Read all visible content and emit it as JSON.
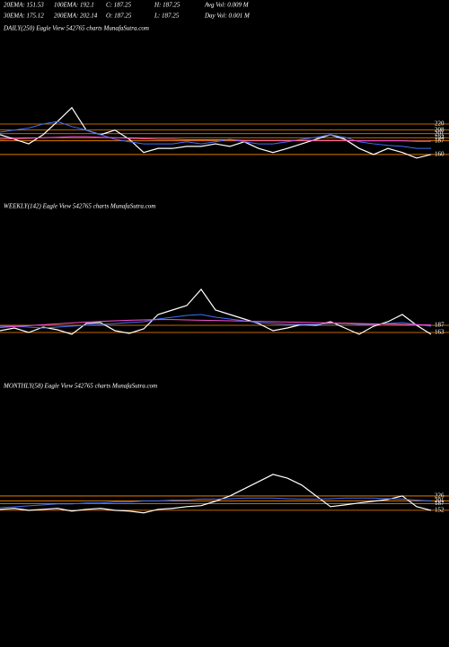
{
  "header": {
    "row1": [
      "20EMA: 151.53",
      "100EMA: 192.1",
      "C: 187.25",
      "H: 187.25",
      "Avg Vol: 0.009 M"
    ],
    "row2": [
      "30EMA: 175.12",
      "200EMA: 202.14",
      "O: 187.25",
      "L: 187.25",
      "Day Vol: 0.001 M"
    ]
  },
  "chart_data": [
    {
      "type": "line",
      "title": "DAILY(250) Eagle  View  542765 charts MunafaSutra.com",
      "ylim": [
        84,
        393
      ],
      "yticks": [
        220,
        208,
        201,
        193,
        187,
        160
      ],
      "grid": true,
      "grid_color": "#ff8c00",
      "series": [
        {
          "color": "#ffffff",
          "values": [
            199,
            190,
            181,
            199,
            225,
            252,
            208,
            199,
            208,
            190,
            164,
            172,
            172,
            176,
            176,
            181,
            176,
            185,
            172,
            164,
            172,
            181,
            190,
            199,
            190,
            172,
            160,
            172,
            164,
            153,
            160
          ]
        },
        {
          "color": "#3f6fff",
          "values": [
            204,
            208,
            212,
            220,
            225,
            215,
            208,
            199,
            190,
            185,
            181,
            181,
            181,
            185,
            181,
            185,
            190,
            185,
            181,
            181,
            185,
            190,
            194,
            199,
            194,
            185,
            181,
            178,
            176,
            172,
            172
          ]
        },
        {
          "color": "#ff4fd8",
          "values": [
            190,
            191,
            192,
            193,
            194,
            195,
            195,
            194,
            193,
            192,
            191,
            190,
            190,
            189,
            189,
            189,
            189,
            188,
            188,
            188,
            188,
            188,
            188,
            188,
            188,
            187,
            187,
            187,
            187,
            186,
            186
          ]
        }
      ]
    },
    {
      "type": "line",
      "title": "WEEKLY(142) Eagle  View  542765 charts MunafaSutra.com",
      "ylim": [
        28,
        553
      ],
      "yticks": [
        187,
        163
      ],
      "grid": true,
      "grid_color": "#ff8c00",
      "series": [
        {
          "color": "#ffffff",
          "values": [
            169,
            178,
            163,
            181,
            172,
            157,
            193,
            196,
            169,
            160,
            175,
            223,
            238,
            253,
            307,
            238,
            223,
            208,
            193,
            169,
            178,
            190,
            187,
            199,
            178,
            157,
            184,
            199,
            223,
            187,
            157
          ]
        },
        {
          "color": "#3f6fff",
          "values": [
            184,
            184,
            181,
            178,
            181,
            184,
            187,
            190,
            193,
            196,
            199,
            208,
            214,
            220,
            223,
            214,
            208,
            202,
            196,
            193,
            190,
            190,
            190,
            193,
            193,
            190,
            190,
            193,
            196,
            190,
            184
          ]
        },
        {
          "color": "#ff4fd8",
          "values": [
            180,
            183,
            186,
            189,
            192,
            195,
            198,
            200,
            202,
            204,
            205,
            206,
            206,
            205,
            204,
            203,
            202,
            201,
            200,
            199,
            198,
            197,
            196,
            195,
            194,
            193,
            192,
            191,
            190,
            189,
            188
          ]
        }
      ]
    },
    {
      "type": "line",
      "title": "MONTHLY(58) Eagle  View  542765 charts MunafaSutra.com",
      "ylim": [
        -66,
        744
      ],
      "yticks": [
        226,
        201,
        187,
        152
      ],
      "grid": true,
      "grid_color": "#ff8c00",
      "series": [
        {
          "color": "#ffffff",
          "values": [
            157,
            162,
            152,
            157,
            162,
            148,
            157,
            162,
            152,
            148,
            139,
            157,
            162,
            171,
            176,
            199,
            226,
            263,
            300,
            337,
            318,
            282,
            226,
            171,
            180,
            190,
            199,
            208,
            226,
            171,
            152
          ]
        },
        {
          "color": "#3f6fff",
          "values": [
            166,
            170,
            175,
            180,
            185,
            185,
            190,
            190,
            195,
            195,
            200,
            200,
            205,
            205,
            210,
            210,
            212,
            215,
            215,
            215,
            212,
            210,
            210,
            212,
            215,
            215,
            215,
            212,
            210,
            205,
            200
          ]
        }
      ]
    }
  ]
}
